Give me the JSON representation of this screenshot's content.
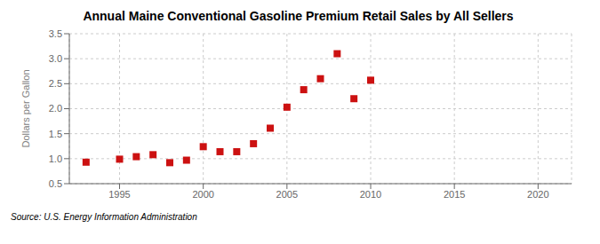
{
  "chart_data": {
    "type": "scatter",
    "title": "Annual Maine Conventional Gasoline Premium Retail Sales by All Sellers",
    "ylabel": "Dollars per Gallon",
    "annotation": "Source: U.S. Energy Information Administration",
    "x": [
      1993,
      1995,
      1996,
      1997,
      1998,
      1999,
      2000,
      2001,
      2002,
      2003,
      2004,
      2005,
      2006,
      2007,
      2008,
      2009,
      2010
    ],
    "values": [
      0.93,
      0.99,
      1.04,
      1.08,
      0.92,
      0.97,
      1.24,
      1.14,
      1.14,
      1.3,
      1.61,
      2.03,
      2.38,
      2.6,
      3.1,
      2.2,
      2.57
    ],
    "color": "#cc1111",
    "marker": "square",
    "xlim": [
      1992,
      2022
    ],
    "ylim": [
      0.5,
      3.5
    ],
    "xticks": [
      1995,
      2000,
      2005,
      2010,
      2015,
      2020
    ],
    "yticks": [
      0.5,
      {
        "value": 1.0,
        "label": "1.0"
      },
      1.5,
      {
        "value": 2.0,
        "label": "2.0"
      },
      2.5,
      {
        "value": 3.0,
        "label": "3.0"
      },
      3.5
    ],
    "grid": true
  }
}
